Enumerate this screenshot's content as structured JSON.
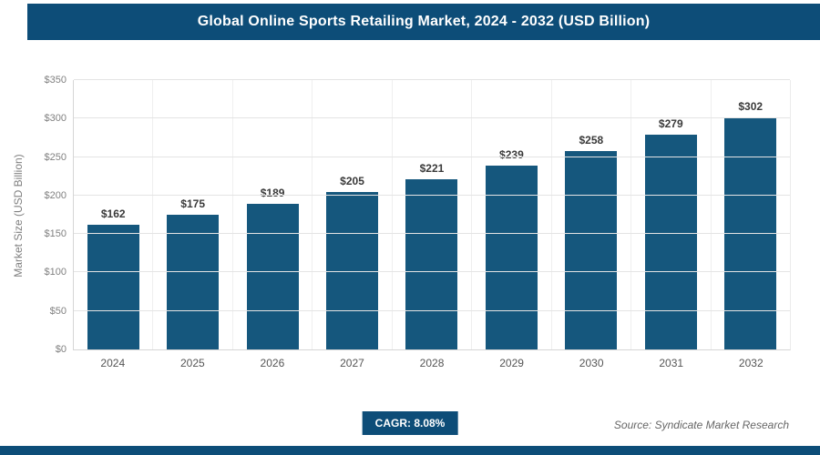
{
  "header": {
    "title": "Global Online Sports Retailing Market, 2024 - 2032 (USD Billion)"
  },
  "chart_data": {
    "type": "bar",
    "title": "Global Online Sports Retailing Market, 2024 - 2032 (USD Billion)",
    "categories": [
      "2024",
      "2025",
      "2026",
      "2027",
      "2028",
      "2029",
      "2030",
      "2031",
      "2032"
    ],
    "values": [
      162,
      175,
      189,
      205,
      221,
      239,
      258,
      279,
      302
    ],
    "value_labels": [
      "$162",
      "$175",
      "$189",
      "$205",
      "$221",
      "$239",
      "$258",
      "$279",
      "$302"
    ],
    "xlabel": "",
    "ylabel": "Market Size (USD Billion)",
    "ylim": [
      0,
      350
    ],
    "ytick_step": 50,
    "ytick_labels": [
      "$0",
      "$50",
      "$100",
      "$150",
      "$200",
      "$250",
      "$300",
      "$350"
    ],
    "grid": true,
    "legend": "none",
    "bar_color": "#15577d"
  },
  "footer": {
    "cagr_label": "CAGR: 8.08%",
    "source": "Source: Syndicate Market Research"
  },
  "colors": {
    "accent": "#0d4d78",
    "bar": "#15577d",
    "grid": "#e4e4e4"
  }
}
